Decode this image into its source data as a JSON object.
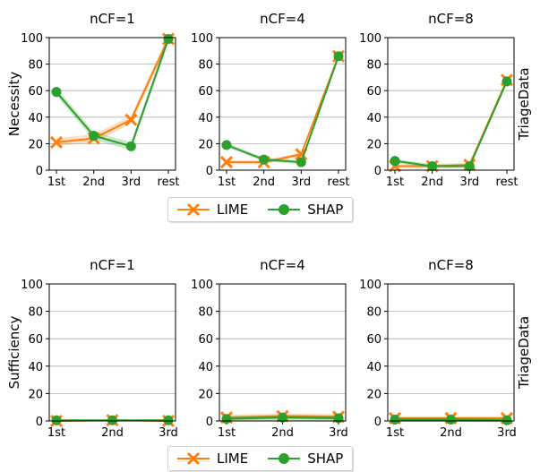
{
  "colors": {
    "lime": "#ff7f0e",
    "shap": "#2ca02c",
    "grid": "#b0b0b0"
  },
  "legend": [
    {
      "name": "LIME",
      "marker": "x",
      "color": "#ff7f0e"
    },
    {
      "name": "SHAP",
      "marker": "o",
      "color": "#2ca02c"
    }
  ],
  "chart_data": [
    {
      "type": "line",
      "title": "nCF=1",
      "ylabel": "Necessity",
      "side_label": "",
      "categories": [
        "1st",
        "2nd",
        "3rd",
        "rest"
      ],
      "ylim": [
        0,
        100
      ],
      "yticks": [
        0,
        20,
        40,
        60,
        80,
        100
      ],
      "grid": "horizontal",
      "series": [
        {
          "name": "LIME",
          "values": [
            21,
            24,
            38,
            99
          ],
          "band": 3
        },
        {
          "name": "SHAP",
          "values": [
            59,
            26,
            18,
            99
          ],
          "band": 3
        }
      ]
    },
    {
      "type": "line",
      "title": "nCF=4",
      "ylabel": "",
      "side_label": "",
      "categories": [
        "1st",
        "2nd",
        "3rd",
        "rest"
      ],
      "ylim": [
        0,
        100
      ],
      "yticks": [
        0,
        20,
        40,
        60,
        80,
        100
      ],
      "grid": "horizontal",
      "series": [
        {
          "name": "LIME",
          "values": [
            6,
            6,
            12,
            86
          ],
          "band": 1.5
        },
        {
          "name": "SHAP",
          "values": [
            19,
            8,
            6,
            86
          ],
          "band": 1.5
        }
      ]
    },
    {
      "type": "line",
      "title": "nCF=8",
      "ylabel": "",
      "side_label": "TriageData",
      "categories": [
        "1st",
        "2nd",
        "3rd",
        "rest"
      ],
      "ylim": [
        0,
        100
      ],
      "yticks": [
        0,
        20,
        40,
        60,
        80,
        100
      ],
      "grid": "horizontal",
      "series": [
        {
          "name": "LIME",
          "values": [
            3,
            3,
            4,
            68
          ],
          "band": 1.5
        },
        {
          "name": "SHAP",
          "values": [
            7,
            3,
            3,
            67
          ],
          "band": 1.5
        }
      ]
    },
    {
      "type": "line",
      "title": "nCF=1",
      "ylabel": "Sufficiency",
      "side_label": "",
      "categories": [
        "1st",
        "2nd",
        "3rd"
      ],
      "ylim": [
        0,
        100
      ],
      "yticks": [
        0,
        20,
        40,
        60,
        80,
        100
      ],
      "grid": "horizontal",
      "series": [
        {
          "name": "LIME",
          "values": [
            0,
            0.5,
            0
          ],
          "band": 0.6
        },
        {
          "name": "SHAP",
          "values": [
            0.5,
            0.5,
            0.5
          ],
          "band": 0.6
        }
      ]
    },
    {
      "type": "line",
      "title": "nCF=4",
      "ylabel": "",
      "side_label": "",
      "categories": [
        "1st",
        "2nd",
        "3rd"
      ],
      "ylim": [
        0,
        100
      ],
      "yticks": [
        0,
        20,
        40,
        60,
        80,
        100
      ],
      "grid": "horizontal",
      "series": [
        {
          "name": "LIME",
          "values": [
            2.5,
            3.5,
            3
          ],
          "band": 2
        },
        {
          "name": "SHAP",
          "values": [
            1.5,
            2.5,
            2
          ],
          "band": 2
        }
      ]
    },
    {
      "type": "line",
      "title": "nCF=8",
      "ylabel": "",
      "side_label": "TriageData",
      "categories": [
        "1st",
        "2nd",
        "3rd"
      ],
      "ylim": [
        0,
        100
      ],
      "yticks": [
        0,
        20,
        40,
        60,
        80,
        100
      ],
      "grid": "horizontal",
      "series": [
        {
          "name": "LIME",
          "values": [
            2,
            2,
            2
          ],
          "band": 1.5
        },
        {
          "name": "SHAP",
          "values": [
            1,
            1,
            0.5
          ],
          "band": 1.5
        }
      ]
    }
  ]
}
